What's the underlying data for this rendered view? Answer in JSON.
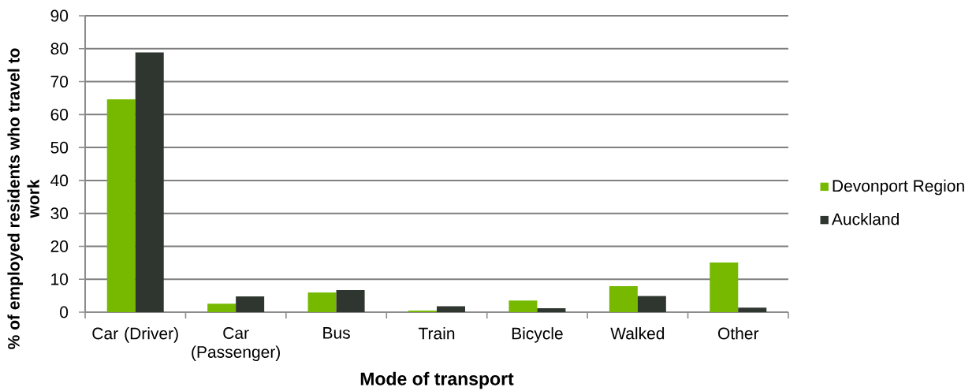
{
  "chart_data": {
    "type": "bar",
    "xlabel": "Mode of transport",
    "ylabel": "% of employed residents who travel to work",
    "categories": [
      "Car (Driver)",
      "Car (Passenger)",
      "Bus",
      "Train",
      "Bicycle",
      "Walked",
      "Other"
    ],
    "series": [
      {
        "name": "Devonport Region",
        "color": "#76b900",
        "values": [
          64.6,
          2.6,
          6.0,
          0.5,
          3.5,
          7.9,
          15.1
        ]
      },
      {
        "name": "Auckland",
        "color": "#2f352f",
        "values": [
          78.9,
          4.8,
          6.7,
          1.8,
          1.2,
          4.9,
          1.4
        ]
      }
    ],
    "ylim": [
      0,
      90
    ],
    "yticks": [
      0,
      10,
      20,
      30,
      40,
      50,
      60,
      70,
      80,
      90
    ],
    "grid": "y",
    "legend": "right"
  }
}
